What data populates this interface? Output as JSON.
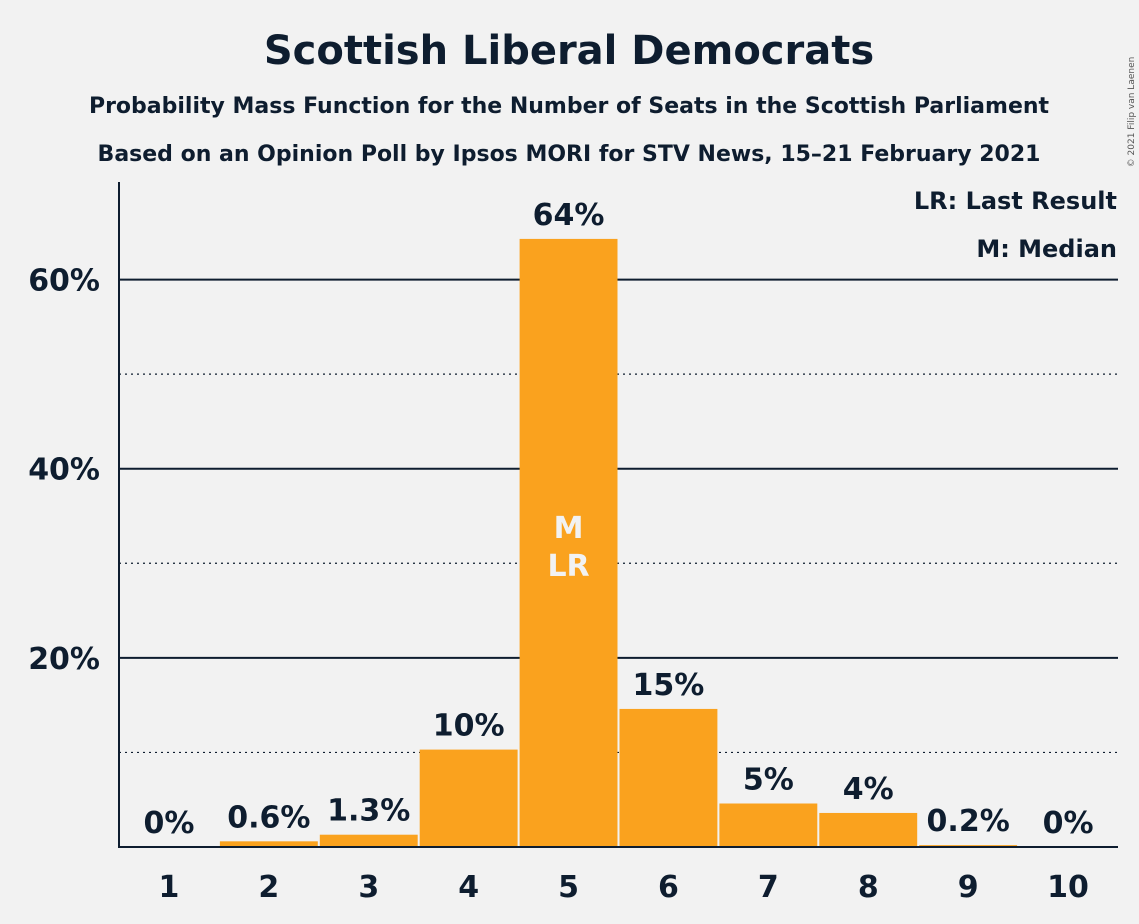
{
  "chart_data": {
    "type": "bar",
    "title": "Scottish Liberal Democrats",
    "subtitle": "Probability Mass Function for the Number of Seats in the Scottish Parliament",
    "subtitle2": "Based on an Opinion Poll by Ipsos MORI for STV News, 15–21 February 2021",
    "copyright": "© 2021 Filip van Laenen",
    "categories": [
      "1",
      "2",
      "3",
      "4",
      "5",
      "6",
      "7",
      "8",
      "9",
      "10"
    ],
    "values": [
      0,
      0.6,
      1.3,
      10.3,
      64.3,
      14.6,
      4.6,
      3.6,
      0.2,
      0
    ],
    "data_labels": [
      "0%",
      "0.6%",
      "1.3%",
      "10%",
      "64%",
      "15%",
      "5%",
      "4%",
      "0.2%",
      "0%"
    ],
    "ylim": [
      0,
      70
    ],
    "y_ticks": [
      {
        "value": 20,
        "label": "20%"
      },
      {
        "value": 40,
        "label": "40%"
      },
      {
        "value": 60,
        "label": "60%"
      }
    ],
    "y_minor_gridlines": [
      10,
      30,
      50
    ],
    "median_index": 4,
    "last_result_index": 4,
    "median_marker": "M",
    "last_result_marker": "LR",
    "legend": [
      "LR: Last Result",
      "M: Median"
    ],
    "legend_position": "top-right",
    "colors": {
      "bar": "#faa21e",
      "text": "#0e1d2f",
      "background": "#f2f2f2"
    }
  }
}
